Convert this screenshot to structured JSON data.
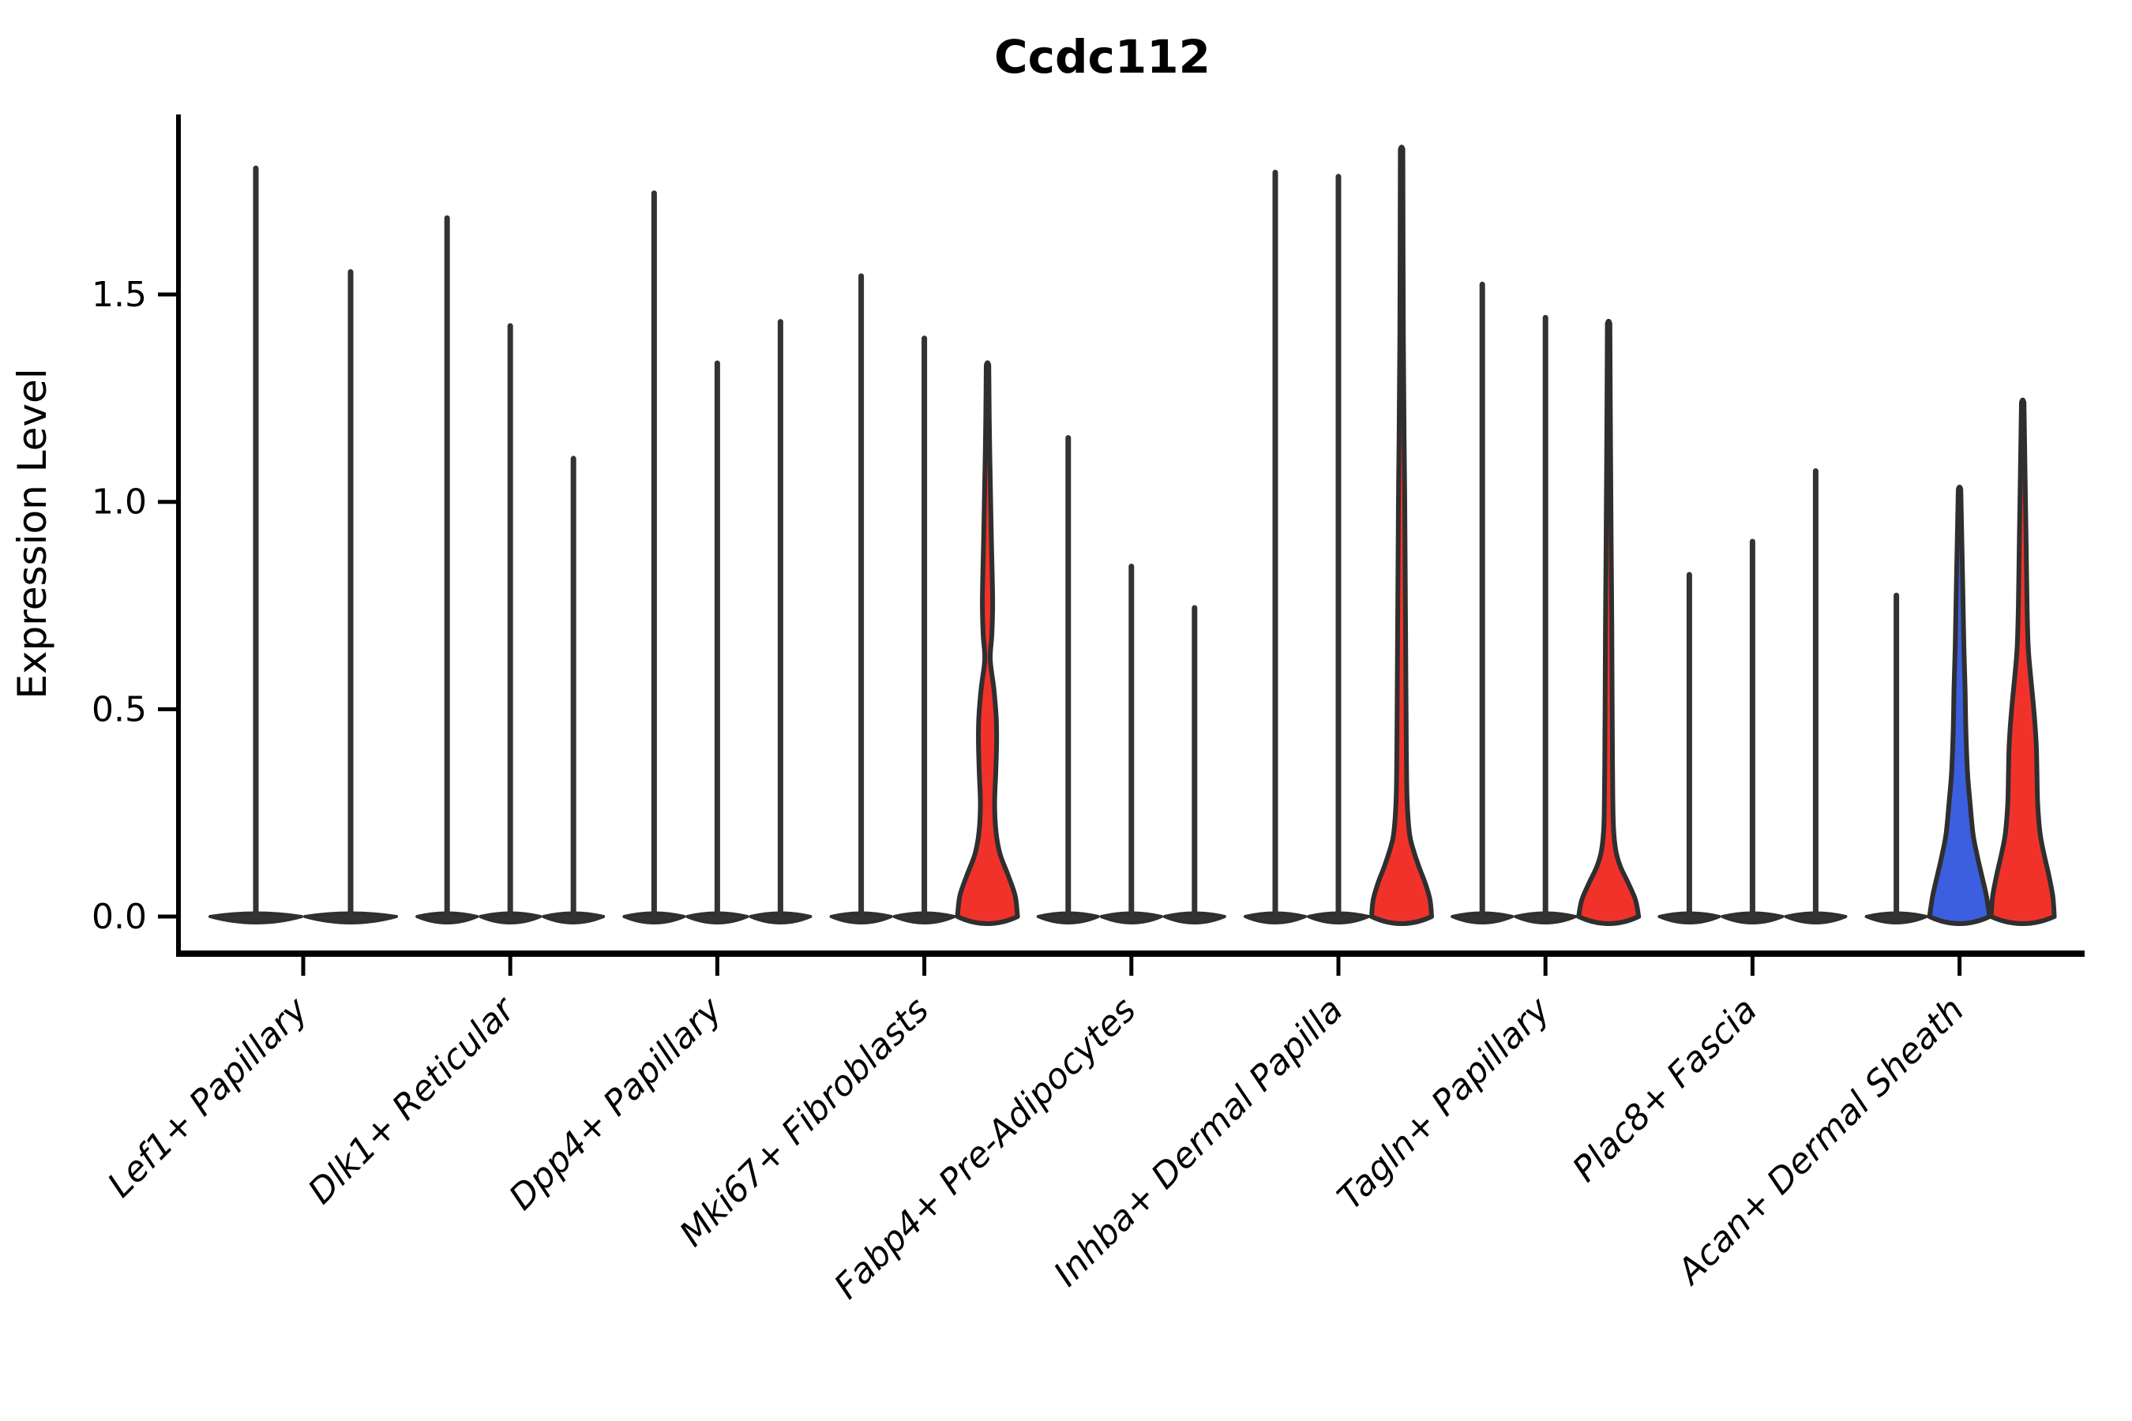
{
  "title": "Ccdc112",
  "y_axis": {
    "label": "Expression Level",
    "tick_labels": [
      "0.0",
      "0.5",
      "1.0",
      "1.5"
    ],
    "tick_values": [
      0,
      0.5,
      1.0,
      1.5
    ]
  },
  "colors": {
    "red": "#F1322B",
    "blue": "#3B5FDE",
    "edge": "#2F2F2F",
    "spike": "#333333",
    "axis": "#000000",
    "background": "#ffffff"
  },
  "chart_data": {
    "type": "violin",
    "title": "Ccdc112",
    "xlabel": "",
    "ylabel": "Expression Level",
    "ylim": [
      -0.09,
      1.93
    ],
    "yticks": [
      0,
      0.5,
      1.0,
      1.5
    ],
    "grid": false,
    "legend": "none",
    "categories": [
      "Lef1+ Papillary",
      "Dlk1+ Reticular",
      "Dpp4+ Papillary",
      "Mki67+ Fibroblasts",
      "Fabp4+ Pre-Adipocytes",
      "Inhba+ Dermal Papilla",
      "Tagln+ Papillary",
      "Plac8+ Fascia",
      "Acan+ Dermal Sheath"
    ],
    "groups": [
      {
        "category": "Lef1+ Papillary",
        "violins": [
          {
            "max": 1.81,
            "fill": "none"
          },
          {
            "max": 1.56,
            "fill": "none"
          }
        ]
      },
      {
        "category": "Dlk1+ Reticular",
        "violins": [
          {
            "max": 1.69,
            "fill": "none"
          },
          {
            "max": 1.43,
            "fill": "none"
          },
          {
            "max": 1.11,
            "fill": "none"
          }
        ]
      },
      {
        "category": "Dpp4+ Papillary",
        "violins": [
          {
            "max": 1.75,
            "fill": "none"
          },
          {
            "max": 1.34,
            "fill": "none"
          },
          {
            "max": 1.44,
            "fill": "none"
          }
        ]
      },
      {
        "category": "Mki67+ Fibroblasts",
        "violins": [
          {
            "max": 1.55,
            "fill": "none"
          },
          {
            "max": 1.4,
            "fill": "none"
          },
          {
            "max": 1.33,
            "fill": "red",
            "shape": "mki67_red"
          }
        ]
      },
      {
        "category": "Fabp4+ Pre-Adipocytes",
        "violins": [
          {
            "max": 1.16,
            "fill": "none"
          },
          {
            "max": 0.85,
            "fill": "none"
          },
          {
            "max": 0.75,
            "fill": "none"
          }
        ]
      },
      {
        "category": "Inhba+ Dermal Papilla",
        "violins": [
          {
            "max": 1.8,
            "fill": "none"
          },
          {
            "max": 1.79,
            "fill": "none"
          },
          {
            "max": 1.85,
            "fill": "red",
            "shape": "inhba_red"
          }
        ]
      },
      {
        "category": "Tagln+ Papillary",
        "violins": [
          {
            "max": 1.53,
            "fill": "none"
          },
          {
            "max": 1.45,
            "fill": "none"
          },
          {
            "max": 1.43,
            "fill": "red",
            "shape": "tagln_red"
          }
        ]
      },
      {
        "category": "Plac8+ Fascia",
        "violins": [
          {
            "max": 0.83,
            "fill": "none"
          },
          {
            "max": 0.91,
            "fill": "none"
          },
          {
            "max": 1.08,
            "fill": "none"
          }
        ]
      },
      {
        "category": "Acan+ Dermal Sheath",
        "violins": [
          {
            "max": 0.78,
            "fill": "none"
          },
          {
            "max": 1.03,
            "fill": "blue",
            "shape": "acan_blue"
          },
          {
            "max": 1.24,
            "fill": "red",
            "shape": "acan_red"
          }
        ]
      }
    ],
    "violin_shapes": {
      "mki67_red": [
        [
          0.0,
          38
        ],
        [
          0.05,
          35
        ],
        [
          0.1,
          26
        ],
        [
          0.15,
          16
        ],
        [
          0.2,
          11
        ],
        [
          0.27,
          9
        ],
        [
          0.35,
          10.5
        ],
        [
          0.42,
          11.5
        ],
        [
          0.48,
          11
        ],
        [
          0.55,
          8
        ],
        [
          0.62,
          3.5
        ],
        [
          0.68,
          5.5
        ],
        [
          0.75,
          6.5
        ],
        [
          0.82,
          6
        ],
        [
          0.9,
          5
        ],
        [
          1.0,
          4
        ],
        [
          1.1,
          3
        ],
        [
          1.2,
          2.2
        ],
        [
          1.33,
          1.6
        ]
      ],
      "inhba_red": [
        [
          0.0,
          38
        ],
        [
          0.04,
          36
        ],
        [
          0.08,
          30
        ],
        [
          0.12,
          22
        ],
        [
          0.16,
          15
        ],
        [
          0.2,
          10
        ],
        [
          0.28,
          7
        ],
        [
          0.4,
          6
        ],
        [
          0.55,
          5.5
        ],
        [
          0.7,
          5
        ],
        [
          0.85,
          4.5
        ],
        [
          1.0,
          4
        ],
        [
          1.15,
          3.2
        ],
        [
          1.4,
          2.2
        ],
        [
          1.85,
          1.6
        ]
      ],
      "tagln_red": [
        [
          0.0,
          38
        ],
        [
          0.04,
          34
        ],
        [
          0.08,
          25
        ],
        [
          0.12,
          15
        ],
        [
          0.16,
          9
        ],
        [
          0.22,
          6
        ],
        [
          0.35,
          5
        ],
        [
          0.5,
          4.5
        ],
        [
          0.7,
          4
        ],
        [
          0.9,
          3.2
        ],
        [
          1.2,
          2.2
        ],
        [
          1.43,
          1.6
        ]
      ],
      "acan_blue": [
        [
          0.0,
          38
        ],
        [
          0.05,
          34
        ],
        [
          0.1,
          28
        ],
        [
          0.15,
          22
        ],
        [
          0.2,
          17
        ],
        [
          0.28,
          13
        ],
        [
          0.35,
          10
        ],
        [
          0.45,
          8
        ],
        [
          0.55,
          7
        ],
        [
          0.65,
          5.5
        ],
        [
          0.75,
          4.5
        ],
        [
          0.85,
          3.5
        ],
        [
          1.03,
          1.6
        ]
      ],
      "acan_red": [
        [
          0.0,
          40
        ],
        [
          0.05,
          38
        ],
        [
          0.1,
          33
        ],
        [
          0.15,
          27
        ],
        [
          0.2,
          22
        ],
        [
          0.27,
          19
        ],
        [
          0.35,
          18
        ],
        [
          0.42,
          17
        ],
        [
          0.5,
          14
        ],
        [
          0.58,
          10
        ],
        [
          0.65,
          7
        ],
        [
          0.75,
          5.5
        ],
        [
          0.88,
          4.5
        ],
        [
          1.0,
          3.5
        ],
        [
          1.24,
          1.6
        ]
      ]
    }
  }
}
